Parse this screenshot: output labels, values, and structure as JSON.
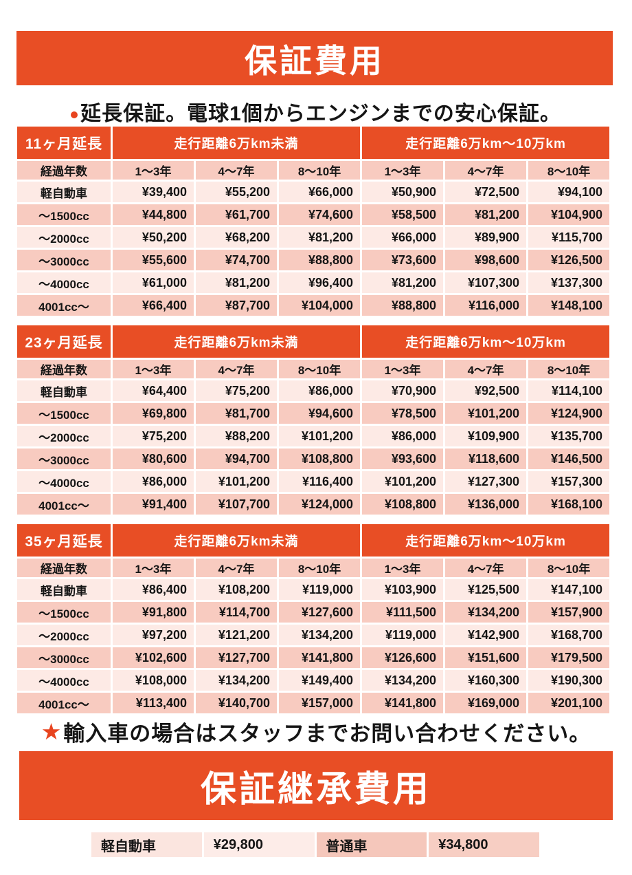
{
  "colors": {
    "accent_orange": "#e84e25",
    "star_red": "#e8441f",
    "row_pink_dark": "#f8cbc0",
    "row_pink_light": "#fdeae5"
  },
  "header": {
    "title": "保証費用",
    "subtitle": "延長保証。電球1個からエンジンまでの安心保証。"
  },
  "tables": [
    {
      "title": "11ヶ月延長",
      "group_headers": [
        "走行距離6万km未満",
        "走行距離6万km～10万km"
      ],
      "col_header_label": "経過年数",
      "col_headers": [
        "1～3年",
        "4～7年",
        "8～10年",
        "1～3年",
        "4～7年",
        "8～10年"
      ],
      "rows": [
        {
          "label": "軽自動車",
          "values": [
            "¥39,400",
            "¥55,200",
            "¥66,000",
            "¥50,900",
            "¥72,500",
            "¥94,100"
          ]
        },
        {
          "label": "～1500cc",
          "values": [
            "¥44,800",
            "¥61,700",
            "¥74,600",
            "¥58,500",
            "¥81,200",
            "¥104,900"
          ]
        },
        {
          "label": "～2000cc",
          "values": [
            "¥50,200",
            "¥68,200",
            "¥81,200",
            "¥66,000",
            "¥89,900",
            "¥115,700"
          ]
        },
        {
          "label": "～3000cc",
          "values": [
            "¥55,600",
            "¥74,700",
            "¥88,800",
            "¥73,600",
            "¥98,600",
            "¥126,500"
          ]
        },
        {
          "label": "～4000cc",
          "values": [
            "¥61,000",
            "¥81,200",
            "¥96,400",
            "¥81,200",
            "¥107,300",
            "¥137,300"
          ]
        },
        {
          "label": "4001cc～",
          "values": [
            "¥66,400",
            "¥87,700",
            "¥104,000",
            "¥88,800",
            "¥116,000",
            "¥148,100"
          ]
        }
      ]
    },
    {
      "title": "23ヶ月延長",
      "group_headers": [
        "走行距離6万km未満",
        "走行距離6万km～10万km"
      ],
      "col_header_label": "経過年数",
      "col_headers": [
        "1～3年",
        "4～7年",
        "8～10年",
        "1～3年",
        "4～7年",
        "8～10年"
      ],
      "rows": [
        {
          "label": "軽自動車",
          "values": [
            "¥64,400",
            "¥75,200",
            "¥86,000",
            "¥70,900",
            "¥92,500",
            "¥114,100"
          ]
        },
        {
          "label": "～1500cc",
          "values": [
            "¥69,800",
            "¥81,700",
            "¥94,600",
            "¥78,500",
            "¥101,200",
            "¥124,900"
          ]
        },
        {
          "label": "～2000cc",
          "values": [
            "¥75,200",
            "¥88,200",
            "¥101,200",
            "¥86,000",
            "¥109,900",
            "¥135,700"
          ]
        },
        {
          "label": "～3000cc",
          "values": [
            "¥80,600",
            "¥94,700",
            "¥108,800",
            "¥93,600",
            "¥118,600",
            "¥146,500"
          ]
        },
        {
          "label": "～4000cc",
          "values": [
            "¥86,000",
            "¥101,200",
            "¥116,400",
            "¥101,200",
            "¥127,300",
            "¥157,300"
          ]
        },
        {
          "label": "4001cc～",
          "values": [
            "¥91,400",
            "¥107,700",
            "¥124,000",
            "¥108,800",
            "¥136,000",
            "¥168,100"
          ]
        }
      ]
    },
    {
      "title": "35ヶ月延長",
      "group_headers": [
        "走行距離6万km未満",
        "走行距離6万km～10万km"
      ],
      "col_header_label": "経過年数",
      "col_headers": [
        "1～3年",
        "4～7年",
        "8～10年",
        "1～3年",
        "4～7年",
        "8～10年"
      ],
      "rows": [
        {
          "label": "軽自動車",
          "values": [
            "¥86,400",
            "¥108,200",
            "¥119,000",
            "¥103,900",
            "¥125,500",
            "¥147,100"
          ]
        },
        {
          "label": "～1500cc",
          "values": [
            "¥91,800",
            "¥114,700",
            "¥127,600",
            "¥111,500",
            "¥134,200",
            "¥157,900"
          ]
        },
        {
          "label": "～2000cc",
          "values": [
            "¥97,200",
            "¥121,200",
            "¥134,200",
            "¥119,000",
            "¥142,900",
            "¥168,700"
          ]
        },
        {
          "label": "～3000cc",
          "values": [
            "¥102,600",
            "¥127,700",
            "¥141,800",
            "¥126,600",
            "¥151,600",
            "¥179,500"
          ]
        },
        {
          "label": "～4000cc",
          "values": [
            "¥108,000",
            "¥134,200",
            "¥149,400",
            "¥134,200",
            "¥160,300",
            "¥190,300"
          ]
        },
        {
          "label": "4001cc～",
          "values": [
            "¥113,400",
            "¥140,700",
            "¥157,000",
            "¥141,800",
            "¥169,000",
            "¥201,100"
          ]
        }
      ]
    }
  ],
  "note": {
    "star": "★",
    "text": "輸入車の場合はスタッフまでお問い合わせください。"
  },
  "succession": {
    "title": "保証継承費用",
    "cells": [
      {
        "label": "軽自動車",
        "value": "¥29,800"
      },
      {
        "label": "普通車",
        "value": "¥34,800"
      }
    ]
  }
}
